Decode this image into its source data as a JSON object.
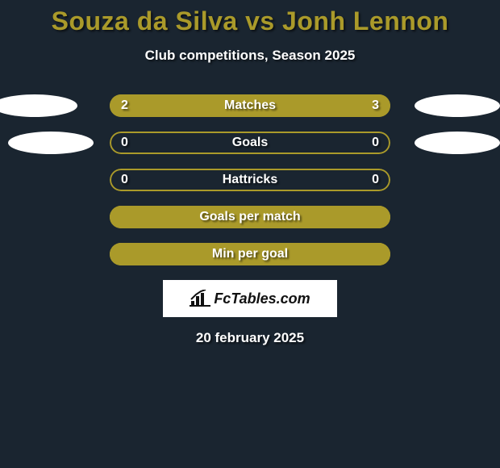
{
  "title": {
    "text": "Souza da Silva vs Jonh Lennon",
    "color": "#aa9a2a",
    "fontsize": 32
  },
  "subtitle": {
    "text": "Club competitions, Season 2025",
    "fontsize": 17
  },
  "accent_color": "#aa9a2a",
  "background_color": "#1a2530",
  "circle_color": "#ffffff",
  "rows": [
    {
      "label": "Matches",
      "left": "2",
      "right": "3",
      "fill_left_pct": 40,
      "fill_right_pct": 60,
      "show_values": true,
      "show_left_circle": true,
      "show_right_circle": true,
      "left_circle_shift": -10
    },
    {
      "label": "Goals",
      "left": "0",
      "right": "0",
      "fill_left_pct": 0,
      "fill_right_pct": 0,
      "show_values": true,
      "show_left_circle": true,
      "show_right_circle": true,
      "left_circle_shift": 10
    },
    {
      "label": "Hattricks",
      "left": "0",
      "right": "0",
      "fill_left_pct": 0,
      "fill_right_pct": 0,
      "show_values": true,
      "show_left_circle": false,
      "show_right_circle": false,
      "left_circle_shift": 0
    },
    {
      "label": "Goals per match",
      "left": "",
      "right": "",
      "fill_left_pct": 100,
      "fill_right_pct": 100,
      "show_values": false,
      "show_left_circle": false,
      "show_right_circle": false,
      "left_circle_shift": 0
    },
    {
      "label": "Min per goal",
      "left": "",
      "right": "",
      "fill_left_pct": 100,
      "fill_right_pct": 100,
      "show_values": false,
      "show_left_circle": false,
      "show_right_circle": false,
      "left_circle_shift": 0
    }
  ],
  "logo": {
    "text": "FcTables.com",
    "fontsize": 18
  },
  "footer_date": {
    "text": "20 february 2025",
    "fontsize": 17
  }
}
